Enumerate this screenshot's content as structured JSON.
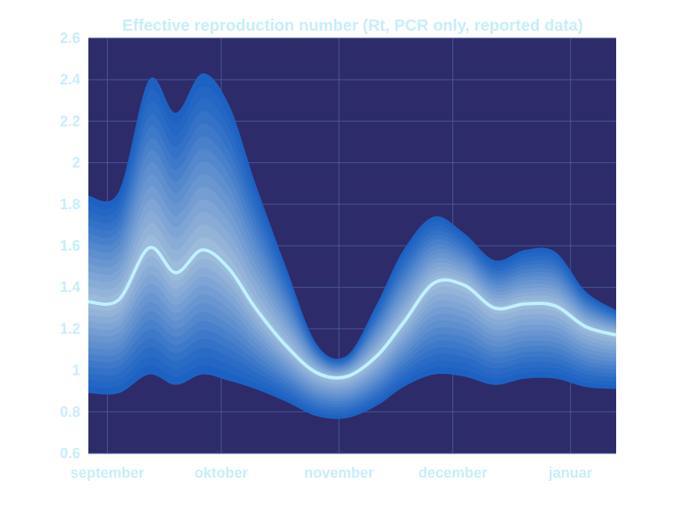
{
  "chart_data": {
    "type": "area",
    "title": "Effective reproduction number (Rt, PCR only, reported data)",
    "xlabel": "",
    "ylabel": "",
    "ylim": [
      0.6,
      2.6
    ],
    "yticks": [
      0.6,
      0.8,
      1,
      1.2,
      1.4,
      1.6,
      1.8,
      2,
      2.2,
      2.4,
      2.6
    ],
    "ytick_labels": [
      "0.6",
      "0.8",
      "1",
      "1.2",
      "1.4",
      "1.6",
      "1.8",
      "2",
      "2.2",
      "2.4",
      "2.6"
    ],
    "xlim": [
      "2020-08-27",
      "2021-01-13"
    ],
    "xticks": [
      "2020-09-01",
      "2020-10-01",
      "2020-11-01",
      "2020-12-01",
      "2021-01-01"
    ],
    "xtick_labels": [
      "september",
      "oktober",
      "november",
      "december",
      "januar"
    ],
    "grid": true,
    "x": [
      "2020-08-27",
      "2020-09-04",
      "2020-09-12",
      "2020-09-19",
      "2020-09-26",
      "2020-10-03",
      "2020-10-10",
      "2020-10-18",
      "2020-10-26",
      "2020-11-03",
      "2020-11-11",
      "2020-11-18",
      "2020-11-26",
      "2020-12-04",
      "2020-12-12",
      "2020-12-20",
      "2020-12-28",
      "2021-01-05",
      "2021-01-13"
    ],
    "series": [
      {
        "role": "median",
        "values": [
          1.33,
          1.34,
          1.59,
          1.47,
          1.58,
          1.49,
          1.3,
          1.12,
          0.99,
          0.97,
          1.07,
          1.23,
          1.42,
          1.41,
          1.3,
          1.32,
          1.31,
          1.21,
          1.17
        ]
      },
      {
        "role": "band_lower",
        "values": [
          0.89,
          0.89,
          0.98,
          0.93,
          0.98,
          0.95,
          0.91,
          0.85,
          0.78,
          0.77,
          0.83,
          0.92,
          0.98,
          0.97,
          0.93,
          0.96,
          0.96,
          0.92,
          0.91
        ]
      },
      {
        "role": "band_upper",
        "values": [
          1.84,
          1.86,
          2.4,
          2.24,
          2.43,
          2.28,
          1.9,
          1.5,
          1.13,
          1.07,
          1.32,
          1.58,
          1.74,
          1.66,
          1.53,
          1.58,
          1.57,
          1.38,
          1.29
        ]
      }
    ],
    "colors": {
      "plot_background": "#2e2b6b",
      "outer_band": "#1d62c2",
      "inner_band": "#a6c1dd",
      "median_line": "#bff2ff",
      "text": "#c6eefa",
      "grid": "#46599a"
    }
  }
}
